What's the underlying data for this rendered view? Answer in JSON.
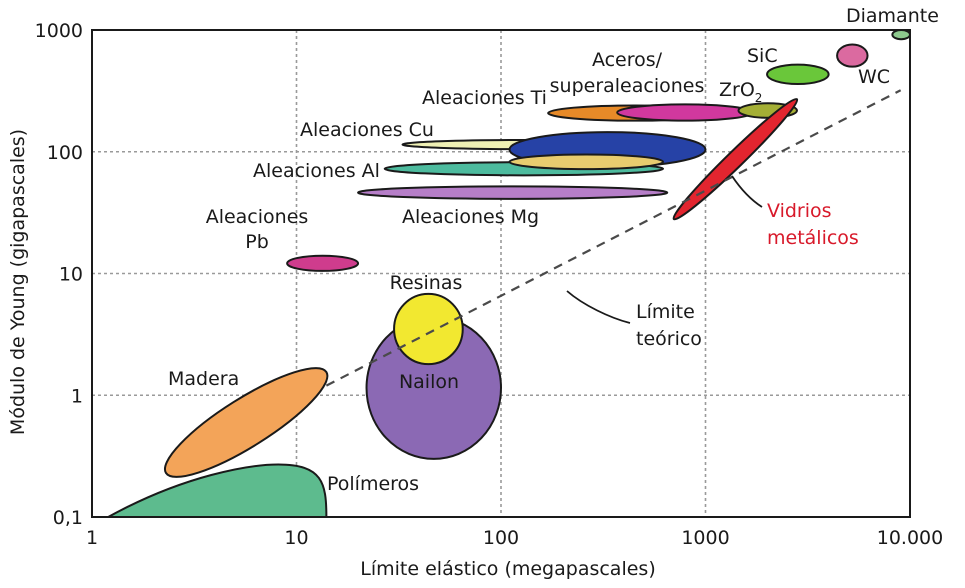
{
  "chart_data": {
    "type": "scatter",
    "title": "",
    "xlabel": "Límite elástico (megapascales)",
    "ylabel": "Módulo de Young (gigapascales)",
    "x_scale": "log",
    "y_scale": "log",
    "xlim": [
      1,
      10000
    ],
    "ylim": [
      0.1,
      1000
    ],
    "grid": true,
    "x_ticks": [
      {
        "value": 1,
        "label": "1"
      },
      {
        "value": 10,
        "label": "10"
      },
      {
        "value": 100,
        "label": "100"
      },
      {
        "value": 1000,
        "label": "1000"
      },
      {
        "value": 10000,
        "label": "10.000"
      }
    ],
    "y_ticks": [
      {
        "value": 0.1,
        "label": "0,1"
      },
      {
        "value": 1,
        "label": "1"
      },
      {
        "value": 10,
        "label": "10"
      },
      {
        "value": 100,
        "label": "100"
      },
      {
        "value": 1000,
        "label": "1000"
      }
    ],
    "theoretical_limit": {
      "x": [
        14,
        9000
      ],
      "y": [
        1.2,
        320
      ],
      "label_lines": [
        "Límite",
        "teórico"
      ]
    },
    "regions": [
      {
        "id": "polimeros",
        "shape": "region",
        "color": "#5dbb8e",
        "x_range": [
          1.2,
          14
        ],
        "y_range": [
          0.1,
          0.27
        ],
        "label_lines": [
          "Polímeros"
        ]
      },
      {
        "id": "madera",
        "shape": "ellipse",
        "color": "#f3a459",
        "x_range": [
          2.3,
          14
        ],
        "y_range": [
          0.23,
          1.55
        ],
        "tilted": true,
        "label_lines": [
          "Madera"
        ]
      },
      {
        "id": "nailon",
        "shape": "ellipse",
        "color": "#8b69b4",
        "x_range": [
          22,
          100
        ],
        "y_range": [
          0.3,
          4.4
        ],
        "label_lines": [
          "Nailon"
        ]
      },
      {
        "id": "resinas",
        "shape": "ellipse",
        "color": "#f2e830",
        "x_range": [
          30,
          65
        ],
        "y_range": [
          1.8,
          6.8
        ],
        "label_lines": [
          "Resinas"
        ]
      },
      {
        "id": "pb",
        "shape": "ellipse",
        "color": "#cf3c8d",
        "x_range": [
          9,
          20
        ],
        "y_range": [
          10.5,
          14
        ],
        "label_lines": [
          "Aleaciones",
          "Pb"
        ]
      },
      {
        "id": "mg",
        "shape": "ellipse",
        "color": "#b67ec8",
        "x_range": [
          20,
          650
        ],
        "y_range": [
          41,
          52
        ],
        "label_lines": [
          "Aleaciones Mg"
        ]
      },
      {
        "id": "al",
        "shape": "ellipse",
        "color": "#4dbb9e",
        "x_range": [
          27,
          620
        ],
        "y_range": [
          64,
          82
        ],
        "label_lines": [
          "Aleaciones Al"
        ]
      },
      {
        "id": "cu",
        "shape": "ellipse",
        "color": "#eff0b4",
        "x_range": [
          33,
          600
        ],
        "y_range": [
          105,
          125
        ],
        "label_lines": [
          "Aleaciones Cu"
        ]
      },
      {
        "id": "aceros-azul",
        "shape": "ellipse",
        "color": "#2642a6",
        "x_range": [
          110,
          1000
        ],
        "y_range": [
          75,
          145
        ],
        "label_lines": []
      },
      {
        "id": "cu-overlap",
        "shape": "ellipse",
        "color": "#e8cc6f",
        "x_range": [
          110,
          620
        ],
        "y_range": [
          72,
          95
        ],
        "label_lines": []
      },
      {
        "id": "ti",
        "shape": "ellipse",
        "color": "#e78a28",
        "x_range": [
          170,
          1200
        ],
        "y_range": [
          180,
          240
        ],
        "label_lines": [
          "Aleaciones Ti"
        ]
      },
      {
        "id": "aceros",
        "shape": "ellipse",
        "color": "#d1389e",
        "x_range": [
          370,
          1700
        ],
        "y_range": [
          180,
          245
        ],
        "label_lines": [
          "Aceros/",
          "superaleaciones"
        ]
      },
      {
        "id": "zro2",
        "shape": "ellipse",
        "color": "#a4af35",
        "x_range": [
          1450,
          2800
        ],
        "y_range": [
          190,
          250
        ],
        "label_lines": [
          "ZrO2"
        ]
      },
      {
        "id": "sic",
        "shape": "ellipse",
        "color": "#6ac73a",
        "x_range": [
          2000,
          4000
        ],
        "y_range": [
          360,
          520
        ],
        "label_lines": [
          "SiC"
        ]
      },
      {
        "id": "wc",
        "shape": "ellipse",
        "color": "#db6aa0",
        "x_range": [
          4400,
          6200
        ],
        "y_range": [
          500,
          760
        ],
        "label_lines": [
          "WC"
        ]
      },
      {
        "id": "diamante",
        "shape": "ellipse",
        "color": "#8ec98e",
        "x_range": [
          8200,
          10000
        ],
        "y_range": [
          840,
          1000
        ],
        "label_lines": [
          "Diamante"
        ]
      },
      {
        "id": "vidrios",
        "shape": "ellipse",
        "color": "#e2252f",
        "x_range": [
          700,
          2800
        ],
        "y_range": [
          28,
          270
        ],
        "tilted": true,
        "label_lines": [
          "Vidrios",
          "metálicos"
        ]
      }
    ]
  }
}
